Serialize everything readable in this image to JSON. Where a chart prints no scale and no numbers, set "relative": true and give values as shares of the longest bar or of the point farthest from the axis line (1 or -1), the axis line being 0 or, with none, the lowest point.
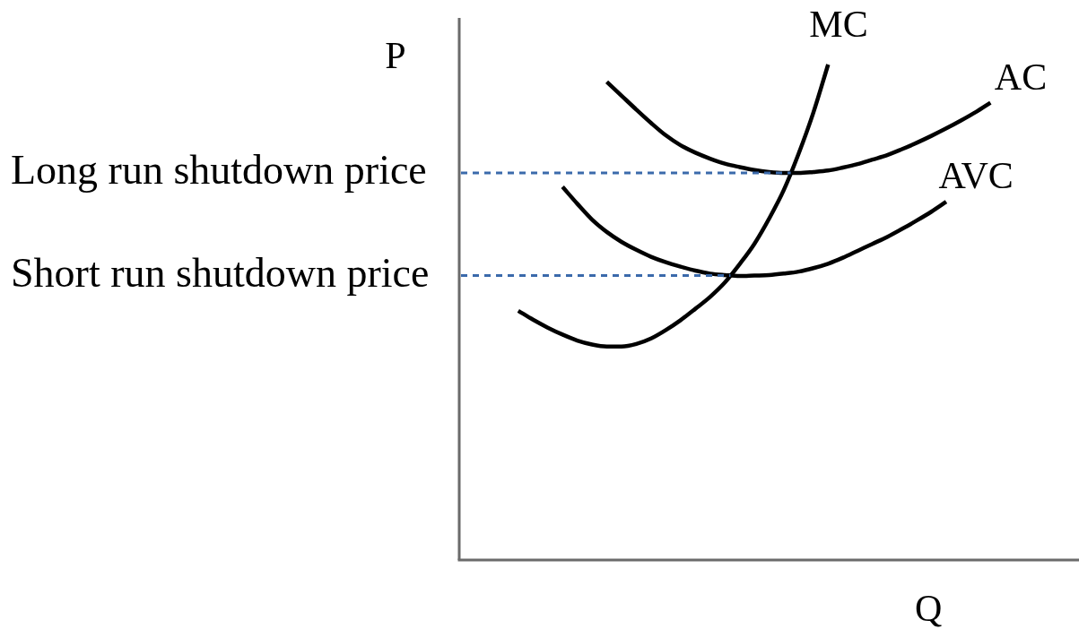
{
  "chart_data": {
    "type": "line",
    "relative": true,
    "xlabel": "Q",
    "ylabel": "P",
    "categories": [
      null,
      null,
      null,
      null,
      null,
      null,
      null,
      null,
      null,
      null,
      null,
      null,
      null,
      null,
      null,
      null,
      null,
      null,
      null,
      null,
      null,
      null,
      null,
      null,
      null,
      null,
      null,
      null,
      null,
      null,
      null,
      null,
      null,
      null,
      null,
      null,
      null,
      null,
      null,
      null,
      null,
      null,
      null
    ],
    "series": [
      {
        "name": "MC",
        "color": "#000000",
        "values": [
          null,
          null,
          null,
          null,
          0.503,
          0.485,
          0.469,
          0.455,
          0.443,
          0.435,
          0.431,
          0.431,
          0.436,
          0.447,
          0.464,
          0.484,
          0.507,
          0.531,
          0.56,
          0.597,
          0.638,
          0.689,
          0.747,
          0.82,
          0.903,
          1.0,
          null,
          null,
          null,
          null,
          null,
          null,
          null,
          null,
          null,
          null,
          null,
          null,
          null,
          null,
          null,
          null,
          null
        ]
      },
      {
        "name": "AC",
        "color": "#000000",
        "values": [
          null,
          null,
          null,
          null,
          null,
          null,
          null,
          null,
          null,
          null,
          0.965,
          0.937,
          0.909,
          0.882,
          0.857,
          0.837,
          0.822,
          0.81,
          0.8,
          0.793,
          0.787,
          0.783,
          0.781,
          0.781,
          0.783,
          0.786,
          0.792,
          0.799,
          0.808,
          0.817,
          0.829,
          0.842,
          0.856,
          0.871,
          0.887,
          0.904,
          0.923,
          null,
          null,
          null,
          null,
          null,
          null
        ]
      },
      {
        "name": "AVC",
        "color": "#000000",
        "values": [
          null,
          null,
          null,
          null,
          null,
          null,
          null,
          0.753,
          0.719,
          0.687,
          0.662,
          0.642,
          0.626,
          0.612,
          0.601,
          0.592,
          0.584,
          0.578,
          0.575,
          0.573,
          0.574,
          0.575,
          0.578,
          0.582,
          0.589,
          0.598,
          0.61,
          0.624,
          0.638,
          0.652,
          0.668,
          0.685,
          0.703,
          0.723,
          null,
          null,
          null,
          null,
          null,
          null,
          null,
          null,
          null
        ]
      }
    ],
    "ref_lines": [
      {
        "axis": "y",
        "value": 0.781,
        "label": "Long run shutdown price",
        "color": "#3b6aab",
        "line_style": "dashed"
      },
      {
        "axis": "y",
        "value": 0.574,
        "label": "Short run shutdown price",
        "color": "#3b6aab",
        "line_style": "dashed"
      }
    ]
  }
}
